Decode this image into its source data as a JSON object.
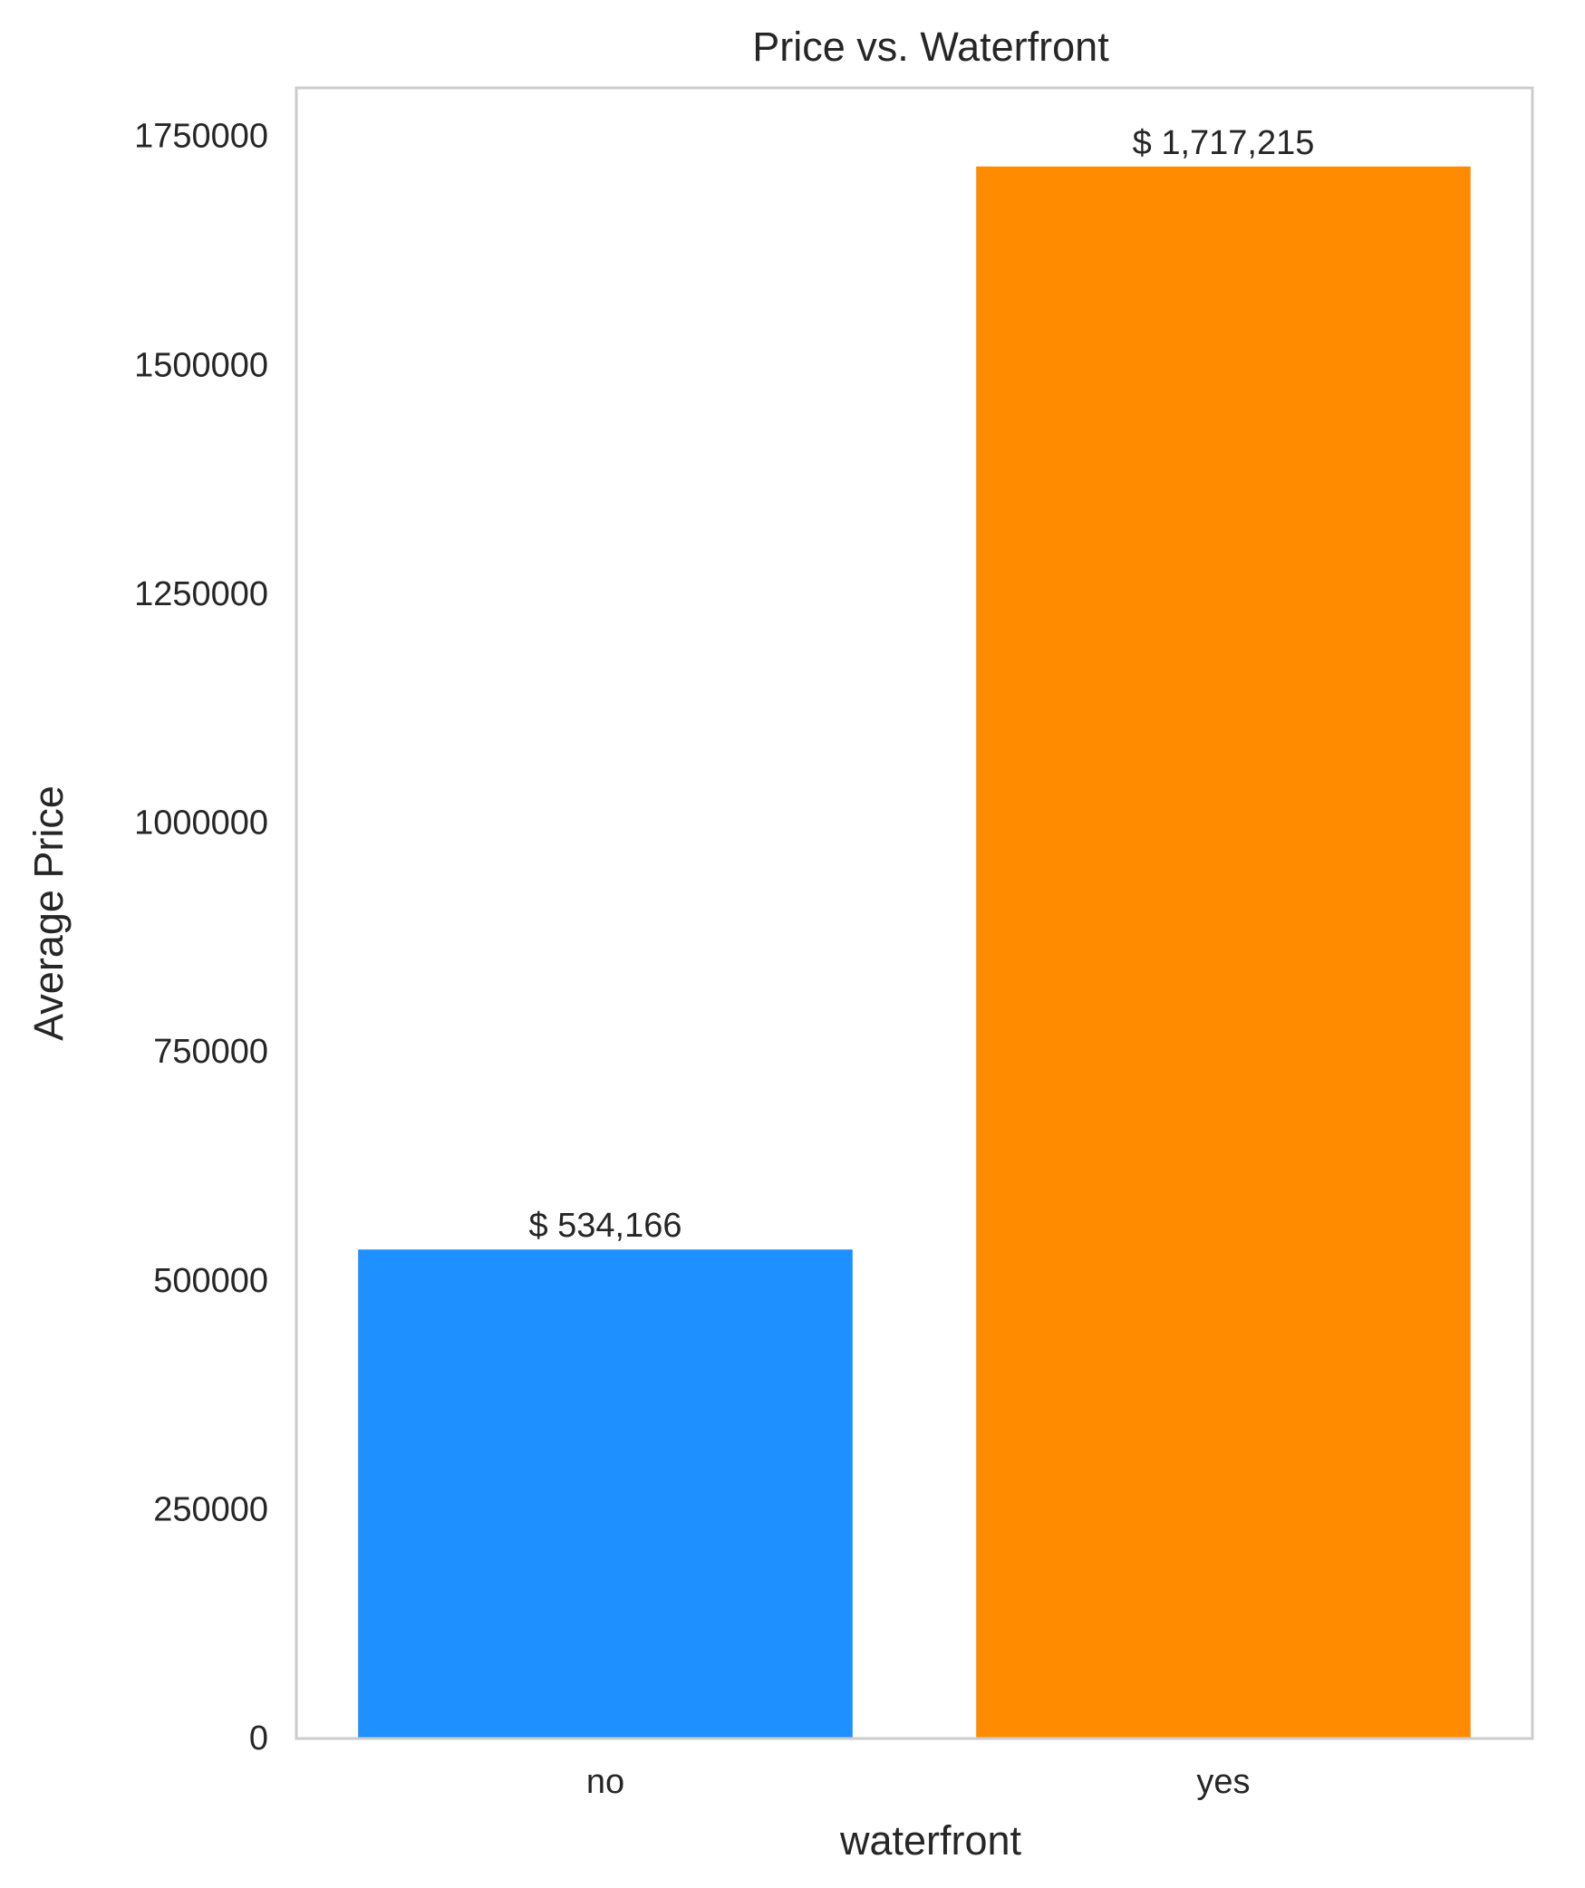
{
  "chart_data": {
    "type": "bar",
    "title": "Price vs. Waterfront",
    "xlabel": "waterfront",
    "ylabel": "Average Price",
    "categories": [
      "no",
      "yes"
    ],
    "values": [
      534166,
      1717215
    ],
    "value_labels": [
      "$ 534,166",
      "$ 1,717,215"
    ],
    "colors": [
      "#1E90FF",
      "#FF8C00"
    ],
    "ylim": [
      0,
      1803076
    ],
    "yticks": [
      0,
      250000,
      500000,
      750000,
      1000000,
      1250000,
      1500000,
      1750000
    ],
    "ytick_labels": [
      "0",
      "250000",
      "500000",
      "750000",
      "1000000",
      "1250000",
      "1500000",
      "1750000"
    ],
    "grid": false,
    "legend": "none",
    "frame_color": "#CCCCCC",
    "text_color": "#262626"
  }
}
